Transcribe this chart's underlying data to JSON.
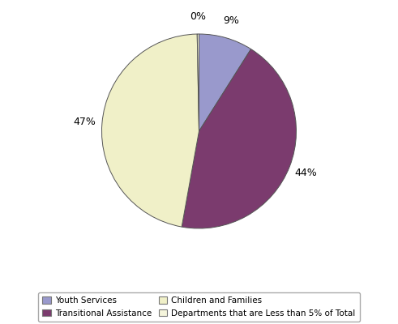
{
  "labels": [
    "Youth Services",
    "Transitional Assistance",
    "Children and Families",
    "Departments that are Less than 5% of Total"
  ],
  "values": [
    9,
    44,
    47,
    0
  ],
  "colors": [
    "#9999cc",
    "#7b3b6e",
    "#f0f0c8",
    "#f5f5dc"
  ],
  "pct_labels": [
    "9%",
    "44%",
    "47%",
    "0%"
  ],
  "legend_labels": [
    "Youth Services",
    "Transitional Assistance",
    "Children and Families",
    "Departments that are Less than 5% of Total"
  ],
  "legend_colors": [
    "#9999cc",
    "#7b3b6e",
    "#f0f0c8",
    "#f5f5dc"
  ],
  "background_color": "#ffffff",
  "fontsize": 9,
  "edge_color": "#555555"
}
